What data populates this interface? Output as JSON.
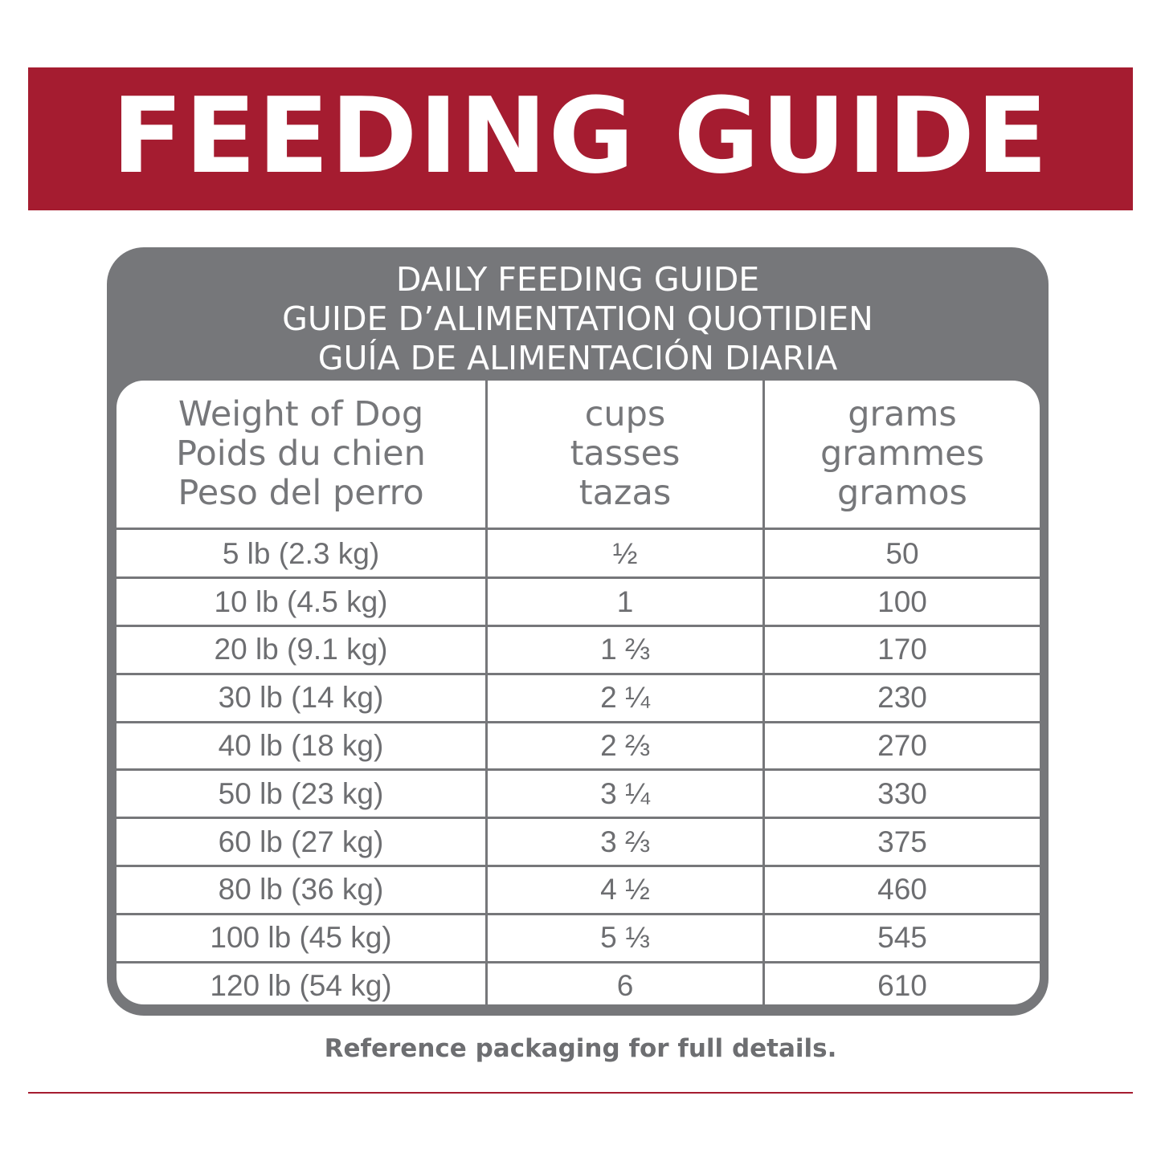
{
  "banner": {
    "title": "FEEDING GUIDE"
  },
  "table": {
    "title_lines": [
      "DAILY FEEDING GUIDE",
      "GUIDE D’ALIMENTATION QUOTIDIEN",
      "GUÍA DE ALIMENTACIÓN DIARIA"
    ],
    "headers": {
      "weight": [
        "Weight of Dog",
        "Poids du chien",
        "Peso del perro"
      ],
      "cups": [
        "cups",
        "tasses",
        "tazas"
      ],
      "grams": [
        "grams",
        "grammes",
        "gramos"
      ]
    },
    "rows": [
      {
        "weight": "5 lb (2.3 kg)",
        "cups": "½",
        "grams": "50"
      },
      {
        "weight": "10 lb (4.5 kg)",
        "cups": "1",
        "grams": "100"
      },
      {
        "weight": "20 lb (9.1 kg)",
        "cups": "1 ⅔",
        "grams": "170"
      },
      {
        "weight": "30 lb (14 kg)",
        "cups": "2 ¼",
        "grams": "230"
      },
      {
        "weight": "40 lb (18 kg)",
        "cups": "2 ⅔",
        "grams": "270"
      },
      {
        "weight": "50 lb (23 kg)",
        "cups": "3 ¼",
        "grams": "330"
      },
      {
        "weight": "60 lb (27 kg)",
        "cups": "3 ⅔",
        "grams": "375"
      },
      {
        "weight": "80 lb (36 kg)",
        "cups": "4 ½",
        "grams": "460"
      },
      {
        "weight": "100 lb (45 kg)",
        "cups": "5 ⅓",
        "grams": "545"
      },
      {
        "weight": "120 lb (54 kg)",
        "cups": "6",
        "grams": "610"
      }
    ]
  },
  "footnote": "Reference packaging for full details.",
  "colors": {
    "brand_red": "#a51c30",
    "frame_gray": "#76777a",
    "text_gray": "#6d6e71"
  }
}
